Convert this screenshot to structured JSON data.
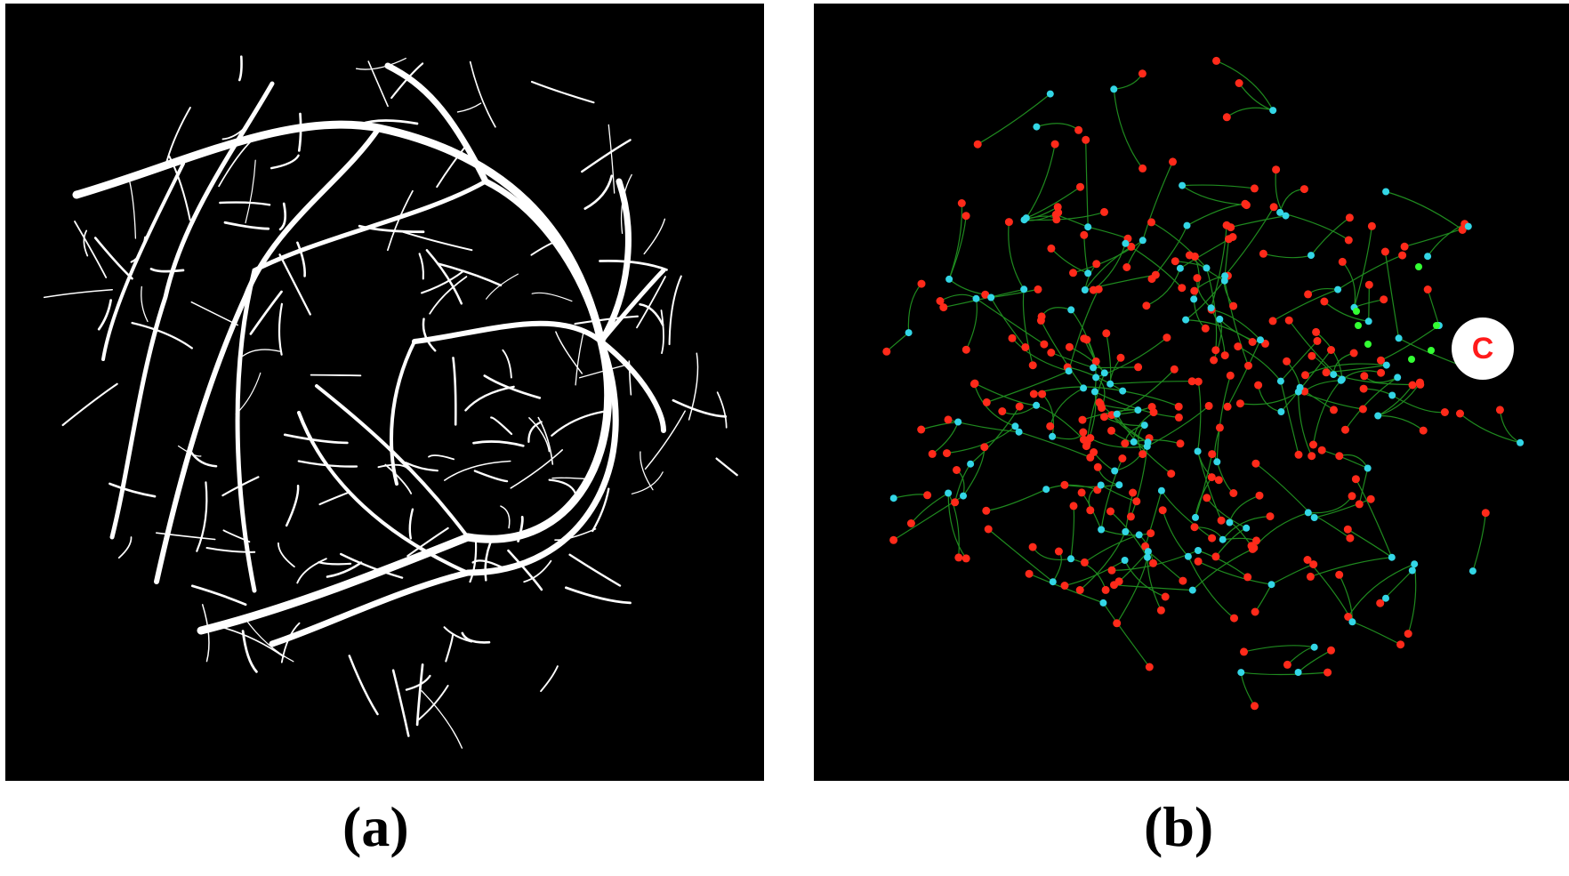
{
  "panels": {
    "a": {
      "caption": "(a)"
    },
    "b": {
      "caption": "(b)",
      "center_label": "C"
    }
  },
  "colors": {
    "background": "#000000",
    "vessel": "#ffffff",
    "graph_edge": "#1f8a1f",
    "endpoint_node": "#ff2a1a",
    "bifurcation_node": "#33d6e6",
    "root_node": "#33ff33",
    "center_marker_text": "#ff1a1a"
  }
}
